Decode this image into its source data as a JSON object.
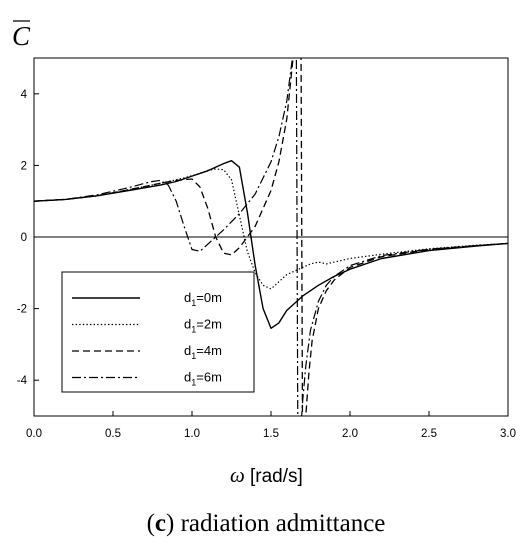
{
  "chart_data": {
    "type": "line",
    "ylabel": "C",
    "xlabel_symbol": "ω",
    "xlabel_unit": "[rad/s]",
    "xlim": [
      0,
      3
    ],
    "ylim": [
      -5,
      5
    ],
    "xticks": [
      0.0,
      0.5,
      1.0,
      1.5,
      2.0,
      2.5,
      3.0
    ],
    "xtick_labels": [
      "0.0",
      "0.5",
      "1.0",
      "1.5",
      "2.0",
      "2.5",
      "3.0"
    ],
    "yticks": [
      -4,
      -2,
      0,
      2,
      4
    ],
    "ytick_labels": [
      "-4",
      "-2",
      "0",
      "2",
      "4"
    ],
    "reference_line_y": 0,
    "legend_position": "lower-left",
    "series": [
      {
        "name": "d1=0m",
        "name_main": "d",
        "name_sub": "1",
        "name_rest": "=0m",
        "style": "solid",
        "x": [
          0.0,
          0.2,
          0.4,
          0.6,
          0.8,
          0.9,
          1.0,
          1.1,
          1.2,
          1.25,
          1.3,
          1.35,
          1.4,
          1.45,
          1.5,
          1.55,
          1.6,
          1.7,
          1.8,
          1.9,
          2.0,
          2.2,
          2.5,
          2.8,
          3.0
        ],
        "y": [
          1.0,
          1.05,
          1.15,
          1.3,
          1.45,
          1.55,
          1.7,
          1.85,
          2.05,
          2.13,
          1.95,
          0.7,
          -0.8,
          -2.0,
          -2.55,
          -2.4,
          -2.05,
          -1.65,
          -1.35,
          -1.1,
          -0.9,
          -0.6,
          -0.38,
          -0.25,
          -0.18
        ]
      },
      {
        "name": "d1=2m",
        "name_main": "d",
        "name_sub": "1",
        "name_rest": "=2m",
        "style": "dotted",
        "x": [
          0.0,
          0.2,
          0.4,
          0.6,
          0.8,
          0.95,
          1.05,
          1.1,
          1.15,
          1.2,
          1.25,
          1.3,
          1.35,
          1.4,
          1.45,
          1.5,
          1.55,
          1.6,
          1.65,
          1.7,
          1.75,
          1.8,
          1.85,
          1.9,
          2.0,
          2.2,
          2.5,
          2.8,
          3.0
        ],
        "y": [
          1.0,
          1.05,
          1.15,
          1.32,
          1.5,
          1.65,
          1.78,
          1.86,
          1.9,
          1.88,
          1.6,
          0.6,
          -0.4,
          -1.0,
          -1.35,
          -1.45,
          -1.25,
          -1.05,
          -0.95,
          -0.85,
          -0.75,
          -0.7,
          -0.75,
          -0.7,
          -0.6,
          -0.48,
          -0.33,
          -0.23,
          -0.18
        ]
      },
      {
        "name": "d1=4m",
        "name_main": "d",
        "name_sub": "1",
        "name_rest": "=4m",
        "style": "dashed",
        "x": [
          0.0,
          0.2,
          0.4,
          0.6,
          0.8,
          0.9,
          1.0,
          1.05,
          1.1,
          1.15,
          1.2,
          1.25,
          1.3,
          1.4,
          1.5,
          1.55,
          1.6,
          1.64,
          1.67,
          1.69,
          1.7,
          1.71,
          1.72,
          1.74,
          1.76,
          1.8,
          1.85,
          1.9,
          2.0,
          2.2,
          2.5,
          2.8,
          3.0
        ],
        "y": [
          1.0,
          1.05,
          1.15,
          1.32,
          1.5,
          1.58,
          1.62,
          1.4,
          0.8,
          0.0,
          -0.45,
          -0.5,
          -0.3,
          0.3,
          1.3,
          2.1,
          3.3,
          5.0,
          5.5,
          5.5,
          -6,
          -6,
          -5.0,
          -3.8,
          -2.9,
          -2.0,
          -1.5,
          -1.2,
          -0.85,
          -0.55,
          -0.35,
          -0.24,
          -0.18
        ]
      },
      {
        "name": "d1=6m",
        "name_main": "d",
        "name_sub": "1",
        "name_rest": "=6m",
        "style": "dashdot",
        "x": [
          0.0,
          0.2,
          0.4,
          0.6,
          0.7,
          0.75,
          0.8,
          0.85,
          0.9,
          0.95,
          1.0,
          1.05,
          1.1,
          1.2,
          1.3,
          1.4,
          1.5,
          1.55,
          1.6,
          1.63,
          1.65,
          1.66,
          1.67,
          1.68,
          1.7,
          1.72,
          1.75,
          1.8,
          1.85,
          1.9,
          2.0,
          2.2,
          2.5,
          2.8,
          3.0
        ],
        "y": [
          1.0,
          1.05,
          1.18,
          1.38,
          1.5,
          1.55,
          1.58,
          1.45,
          1.0,
          0.3,
          -0.35,
          -0.4,
          -0.2,
          0.2,
          0.65,
          1.2,
          2.1,
          2.8,
          3.8,
          4.8,
          5.5,
          5.5,
          -6,
          -6,
          -4.6,
          -3.6,
          -2.6,
          -1.8,
          -1.35,
          -1.1,
          -0.8,
          -0.52,
          -0.34,
          -0.24,
          -0.18
        ]
      }
    ]
  },
  "caption": {
    "label": "c",
    "text": "radiation admittance"
  }
}
